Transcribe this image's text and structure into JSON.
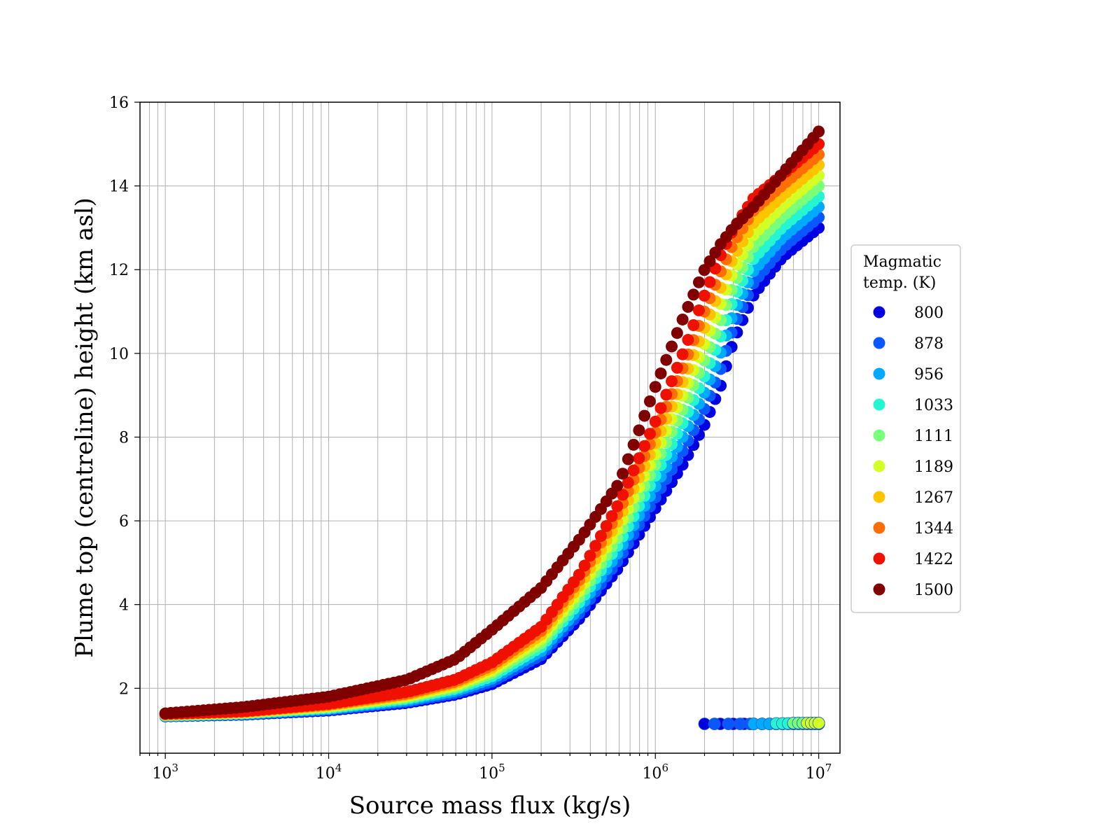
{
  "chart_data": {
    "type": "scatter",
    "title": "",
    "xlabel": "Source mass flux (kg/s)",
    "ylabel": "Plume top (centreline) height (km asl)",
    "x_scale": "log",
    "xlim": [
      700,
      13500000
    ],
    "ylim": [
      0.45,
      16
    ],
    "grid": true,
    "x_ticks": [
      {
        "value": 1000,
        "base": "10",
        "exp": "3"
      },
      {
        "value": 10000,
        "base": "10",
        "exp": "4"
      },
      {
        "value": 100000,
        "base": "10",
        "exp": "5"
      },
      {
        "value": 1000000,
        "base": "10",
        "exp": "6"
      },
      {
        "value": 10000000,
        "base": "10",
        "exp": "7"
      }
    ],
    "y_ticks": [
      "2",
      "4",
      "6",
      "8",
      "10",
      "12",
      "14",
      "16"
    ],
    "legend": {
      "title_lines": [
        "Magmatic",
        "temp. (K)"
      ],
      "placement": "center-right outside",
      "entries": [
        {
          "label": "800",
          "color": "#0000e0"
        },
        {
          "label": "878",
          "color": "#0a57ff"
        },
        {
          "label": "956",
          "color": "#00aaff"
        },
        {
          "label": "1033",
          "color": "#26f5d1"
        },
        {
          "label": "1111",
          "color": "#7aff7a"
        },
        {
          "label": "1189",
          "color": "#d1ff26"
        },
        {
          "label": "1267",
          "color": "#ffc400"
        },
        {
          "label": "1344",
          "color": "#ff6e00"
        },
        {
          "label": "1422",
          "color": "#f01000"
        },
        {
          "label": "1500",
          "color": "#800000"
        }
      ]
    },
    "series": [
      {
        "name": "800",
        "color": "#0000e0",
        "curve_x": [
          1000,
          3000,
          10000,
          30000,
          60000,
          100000,
          200000,
          350000,
          600000,
          1000000,
          1500000,
          2000000,
          2500000,
          3000000,
          4000000,
          6000000,
          10000000
        ],
        "curve_y": [
          1.33,
          1.37,
          1.47,
          1.65,
          1.85,
          2.1,
          2.7,
          3.7,
          4.9,
          6.3,
          7.4,
          8.3,
          9.2,
          10.3,
          11.4,
          12.3,
          13.0
        ],
        "detached_x": [
          2000000,
          2500000,
          3000000,
          3500000,
          4000000,
          5000000,
          6000000,
          7000000,
          8000000,
          9000000,
          10000000
        ],
        "detached_y": [
          1.15,
          1.15,
          1.15,
          1.15,
          1.15,
          1.15,
          1.15,
          1.15,
          1.15,
          1.15,
          1.15
        ]
      },
      {
        "name": "878",
        "color": "#0a57ff",
        "curve_x": [
          1000,
          3000,
          10000,
          30000,
          60000,
          100000,
          200000,
          350000,
          600000,
          1000000,
          1500000,
          2000000,
          2500000,
          3000000,
          4000000,
          6000000,
          10000000
        ],
        "curve_y": [
          1.34,
          1.38,
          1.49,
          1.68,
          1.89,
          2.16,
          2.79,
          3.83,
          5.09,
          6.56,
          7.73,
          8.68,
          9.6,
          10.63,
          11.69,
          12.52,
          13.25
        ],
        "detached_x": [
          2300000,
          2800000,
          3300000,
          3800000,
          4500000,
          5500000,
          6500000,
          7500000,
          8500000,
          9500000,
          10000000
        ],
        "detached_y": [
          1.15,
          1.15,
          1.15,
          1.15,
          1.15,
          1.15,
          1.15,
          1.15,
          1.15,
          1.15,
          1.15
        ]
      },
      {
        "name": "956",
        "color": "#00aaff",
        "curve_x": [
          1000,
          3000,
          10000,
          30000,
          60000,
          100000,
          200000,
          350000,
          600000,
          1000000,
          1500000,
          2000000,
          2500000,
          3000000,
          4000000,
          6000000,
          10000000
        ],
        "curve_y": [
          1.34,
          1.39,
          1.51,
          1.71,
          1.94,
          2.23,
          2.89,
          3.96,
          5.28,
          6.82,
          8.07,
          9.07,
          9.99,
          10.97,
          11.98,
          12.77,
          13.5
        ],
        "detached_x": [
          4000000,
          4500000,
          5000000,
          5500000,
          6000000,
          7000000,
          8000000,
          9000000,
          10000000
        ],
        "detached_y": [
          1.15,
          1.15,
          1.15,
          1.15,
          1.15,
          1.15,
          1.15,
          1.15,
          1.15
        ]
      },
      {
        "name": "1033",
        "color": "#26f5d1",
        "curve_x": [
          1000,
          3000,
          10000,
          30000,
          60000,
          100000,
          200000,
          350000,
          600000,
          1000000,
          1500000,
          2000000,
          2500000,
          3000000,
          4000000,
          6000000,
          10000000
        ],
        "curve_y": [
          1.35,
          1.4,
          1.53,
          1.75,
          1.99,
          2.29,
          2.99,
          4.1,
          5.47,
          7.08,
          8.4,
          9.46,
          10.38,
          11.3,
          12.27,
          13.02,
          13.75
        ],
        "detached_x": [
          5500000,
          6000000,
          6500000,
          7000000,
          8000000,
          9000000,
          10000000
        ],
        "detached_y": [
          1.16,
          1.16,
          1.16,
          1.16,
          1.16,
          1.16,
          1.16
        ]
      },
      {
        "name": "1111",
        "color": "#7aff7a",
        "curve_x": [
          1000,
          3000,
          10000,
          30000,
          60000,
          100000,
          200000,
          350000,
          600000,
          1000000,
          1500000,
          2000000,
          2500000,
          3000000,
          4000000,
          6000000,
          10000000
        ],
        "curve_y": [
          1.36,
          1.41,
          1.55,
          1.78,
          2.03,
          2.36,
          3.08,
          4.23,
          5.66,
          7.34,
          8.73,
          9.84,
          10.77,
          11.63,
          12.56,
          13.27,
          14.0
        ],
        "detached_x": [
          7000000,
          7500000,
          8000000,
          9000000,
          10000000
        ],
        "detached_y": [
          1.17,
          1.17,
          1.17,
          1.17,
          1.17
        ]
      },
      {
        "name": "1189",
        "color": "#d1ff26",
        "curve_x": [
          1000,
          3000,
          10000,
          30000,
          60000,
          100000,
          200000,
          350000,
          600000,
          1000000,
          1500000,
          2000000,
          2500000,
          3000000,
          4000000,
          6000000,
          10000000
        ],
        "curve_y": [
          1.37,
          1.42,
          1.57,
          1.81,
          2.07,
          2.42,
          3.18,
          4.37,
          5.86,
          7.59,
          9.07,
          10.23,
          11.16,
          11.97,
          12.84,
          13.52,
          14.25
        ],
        "detached_x": [
          8500000,
          9000000,
          9500000,
          10000000
        ],
        "detached_y": [
          1.17,
          1.17,
          1.17,
          1.17
        ]
      },
      {
        "name": "1267",
        "color": "#ffc400",
        "curve_x": [
          1000,
          3000,
          10000,
          30000,
          60000,
          100000,
          200000,
          350000,
          600000,
          1000000,
          1500000,
          2000000,
          2500000,
          3000000,
          4000000,
          6000000,
          10000000
        ],
        "curve_y": [
          1.38,
          1.43,
          1.59,
          1.84,
          2.12,
          2.49,
          3.28,
          4.5,
          6.05,
          7.85,
          9.4,
          10.62,
          11.55,
          12.3,
          13.13,
          13.77,
          14.5
        ],
        "detached_x": [],
        "detached_y": []
      },
      {
        "name": "1344",
        "color": "#ff6e00",
        "curve_x": [
          1000,
          3000,
          10000,
          30000,
          60000,
          100000,
          200000,
          350000,
          600000,
          1000000,
          1500000,
          2000000,
          2500000,
          3000000,
          4000000,
          6000000,
          10000000
        ],
        "curve_y": [
          1.38,
          1.44,
          1.61,
          1.87,
          2.16,
          2.55,
          3.37,
          4.64,
          6.24,
          8.11,
          9.73,
          11.01,
          11.94,
          12.63,
          13.42,
          14.02,
          14.75
        ],
        "detached_x": [],
        "detached_y": []
      },
      {
        "name": "1422",
        "color": "#f01000",
        "curve_x": [
          1000,
          3000,
          10000,
          30000,
          60000,
          100000,
          200000,
          350000,
          600000,
          1000000,
          1500000,
          2000000,
          2500000,
          3000000,
          4000000,
          6000000,
          10000000
        ],
        "curve_y": [
          1.39,
          1.45,
          1.63,
          1.91,
          2.21,
          2.62,
          3.47,
          4.77,
          6.43,
          8.37,
          10.07,
          11.39,
          12.33,
          12.97,
          13.71,
          14.27,
          15.0
        ],
        "detached_x": [],
        "detached_y": []
      },
      {
        "name": "1500",
        "color": "#800000",
        "curve_x": [
          1000,
          3000,
          10000,
          30000,
          60000,
          100000,
          200000,
          350000,
          600000,
          1000000,
          1500000,
          2000000,
          2500000,
          3000000,
          4000000,
          6000000,
          10000000
        ],
        "curve_y": [
          1.4,
          1.55,
          1.8,
          2.2,
          2.7,
          3.4,
          4.4,
          5.6,
          6.9,
          9.2,
          10.9,
          12.0,
          12.6,
          13.0,
          13.5,
          14.3,
          15.3
        ],
        "detached_x": [],
        "detached_y": []
      }
    ]
  }
}
